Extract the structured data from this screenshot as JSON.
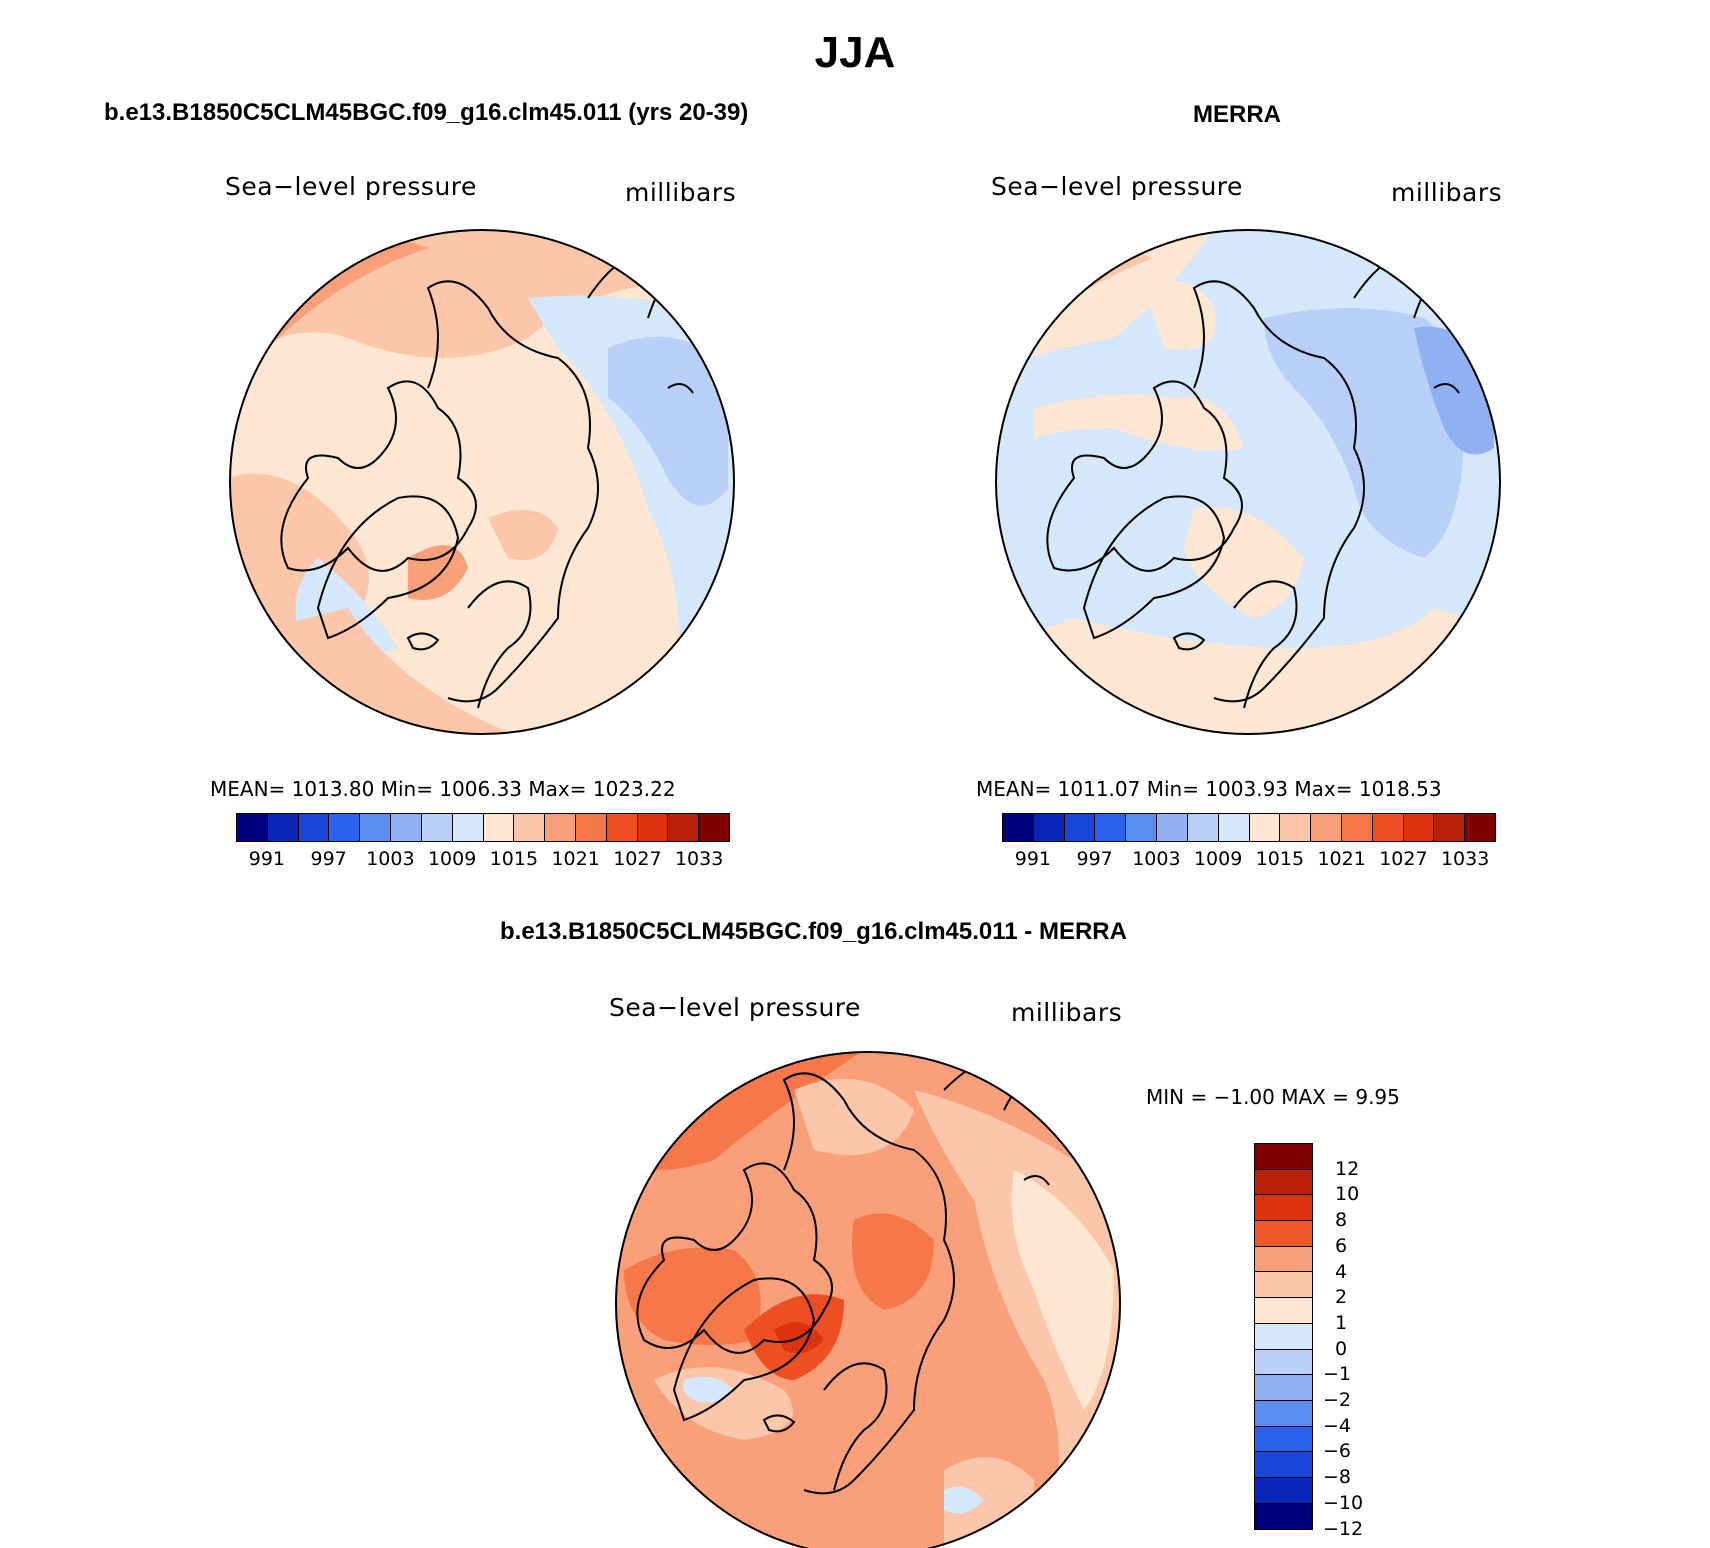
{
  "title": "JJA",
  "panels": [
    {
      "title": "b.e13.B1850C5CLM45BGC.f09_g16.clm45.011 (yrs 20-39)",
      "field_label": "Sea−level pressure",
      "units_label": "millibars",
      "stats": "MEAN=  1013.80    Min=  1006.33    Max=  1023.22",
      "base_color": "#fde0cb"
    },
    {
      "title": "MERRA",
      "field_label": "Sea−level pressure",
      "units_label": "millibars",
      "stats": "MEAN=  1011.07    Min=  1003.93    Max=  1018.53",
      "base_color": "#d5e7fb"
    },
    {
      "title": "b.e13.B1850C5CLM45BGC.f09_g16.clm45.011 - MERRA",
      "field_label": "Sea−level pressure",
      "units_label": "millibars",
      "stats": "MIN =   −1.00  MAX =     9.95",
      "base_color": "#f9a985"
    }
  ],
  "colorbar_abs": {
    "colors": [
      "#000080",
      "#0a26b8",
      "#1a45d9",
      "#2a62f0",
      "#5b8cf0",
      "#8fb0f3",
      "#b8cff7",
      "#d5e7fb",
      "#fde6d2",
      "#fbc6a9",
      "#f9a07a",
      "#f5774a",
      "#ee4f22",
      "#dc3210",
      "#b82008",
      "#800000"
    ],
    "tick_labels": [
      "991",
      "997",
      "1003",
      "1009",
      "1015",
      "1021",
      "1027",
      "1033"
    ]
  },
  "colorbar_diff": {
    "colors": [
      "#800000",
      "#b82008",
      "#dc3210",
      "#f05a28",
      "#f9a07a",
      "#fbc6a9",
      "#fde6d2",
      "#d5e7fb",
      "#b8cff7",
      "#8fb0f3",
      "#5b8cf0",
      "#2a62f0",
      "#1a45d9",
      "#0a26b8",
      "#000080"
    ],
    "tick_labels": [
      "12",
      "10",
      "8",
      "6",
      "4",
      "2",
      "1",
      "0",
      "−1",
      "−2",
      "−4",
      "−6",
      "−8",
      "−10",
      "−12"
    ]
  }
}
